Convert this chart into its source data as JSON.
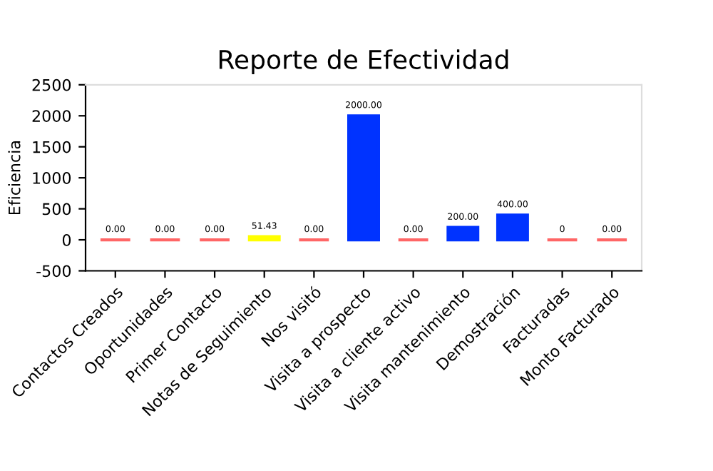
{
  "chart_data": {
    "type": "bar",
    "title": "Reporte de Efectividad",
    "ylabel": "Eficiencia",
    "categories": [
      "Contactos Creados",
      "Oportunidades",
      "Primer Contacto",
      "Notas de Seguimiento",
      "Nos visitó",
      "Visita a prospecto",
      "Visita a cliente activo",
      "Visita mantenimiento",
      "Demostración",
      "Facturadas",
      "Monto Facturado"
    ],
    "values": [
      0,
      0,
      0,
      51.43,
      0,
      2000,
      0,
      200,
      400,
      0,
      0
    ],
    "value_labels": [
      "0.00",
      "0.00",
      "0.00",
      "51.43",
      "0.00",
      "2000.00",
      "0.00",
      "200.00",
      "400.00",
      "0",
      "0.00"
    ],
    "colors": [
      "#ff6666",
      "#ff6666",
      "#ff6666",
      "#ffff00",
      "#ff6666",
      "#0033ff",
      "#ff6666",
      "#0033ff",
      "#0033ff",
      "#ff6666",
      "#ff6666"
    ],
    "ylim": [
      -500,
      2500
    ],
    "yticks": [
      -500,
      0,
      500,
      1000,
      1500,
      2000,
      2500
    ],
    "grid": false
  }
}
